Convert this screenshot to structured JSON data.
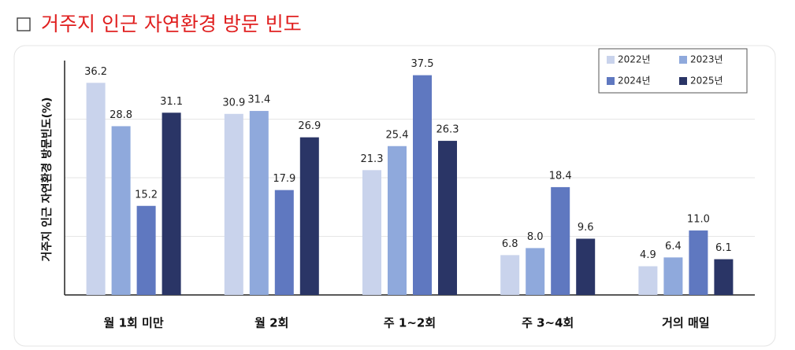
{
  "page_title": "거주지 인근 자연환경 방문 빈도",
  "chart_data": {
    "type": "bar",
    "y_label": "거주지 인근 자연환경 방문빈도(%)",
    "categories": [
      "월 1회 미만",
      "월 2회",
      "주 1~2회",
      "주 3~4회",
      "거의 매일"
    ],
    "series": [
      {
        "name": "2022년",
        "color": "#c9d3ec",
        "values": [
          36.2,
          30.9,
          21.3,
          6.8,
          4.9
        ],
        "value_labels": [
          "36.2",
          "30.9",
          "21.3",
          "6.8",
          "4.9"
        ]
      },
      {
        "name": "2023년",
        "color": "#8fa9dc",
        "values": [
          28.8,
          31.4,
          25.4,
          8.0,
          6.4
        ],
        "value_labels": [
          "28.8",
          "31.4",
          "25.4",
          "8.0",
          "6.4"
        ]
      },
      {
        "name": "2024년",
        "color": "#5f78c0",
        "values": [
          15.2,
          17.9,
          37.5,
          18.4,
          11.0
        ],
        "value_labels": [
          "15.2",
          "17.9",
          "37.5",
          "18.4",
          "11.0"
        ]
      },
      {
        "name": "2025년",
        "color": "#2a3566",
        "values": [
          31.1,
          26.9,
          26.3,
          9.6,
          6.1
        ],
        "value_labels": [
          "31.1",
          "26.9",
          "26.3",
          "9.6",
          "6.1"
        ]
      }
    ],
    "ylim": [
      0,
      40
    ],
    "yticks": [
      10,
      20,
      30
    ],
    "grid": true,
    "legend": "top-right"
  }
}
